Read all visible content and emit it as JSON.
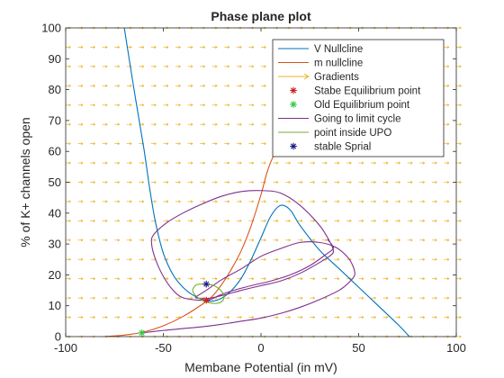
{
  "chart_data": {
    "type": "line",
    "title": "Phase plane plot",
    "xlabel": "Membane Potential (in mV)",
    "ylabel": "% of K+ channels open",
    "xlim": [
      -100,
      100
    ],
    "ylim": [
      0,
      100
    ],
    "xticks": [
      -100,
      -50,
      0,
      50,
      100
    ],
    "yticks": [
      0,
      10,
      20,
      30,
      40,
      50,
      60,
      70,
      80,
      90,
      100
    ],
    "grid": false,
    "legend_position": "top-right",
    "series": [
      {
        "name": "V Nullcline",
        "type": "line",
        "color": "#0072BD",
        "x": [
          -70,
          -65,
          -60,
          -57,
          -54,
          -50,
          -45,
          -40,
          -35,
          -30,
          -25,
          -20,
          -15,
          -10,
          -5,
          0,
          5,
          10,
          15,
          20,
          30,
          40,
          50,
          60,
          70,
          76
        ],
        "y": [
          100,
          80,
          61,
          48,
          37,
          27,
          20,
          16,
          13.5,
          12,
          11.5,
          12.5,
          15,
          19,
          25,
          32,
          39,
          42.5,
          41,
          36,
          28,
          22,
          16,
          10,
          4,
          0
        ]
      },
      {
        "name": "m nullcline",
        "type": "line",
        "color": "#D95319",
        "x": [
          -80,
          -70,
          -60,
          -50,
          -40,
          -30,
          -25,
          -20,
          -15,
          -10,
          -5,
          0,
          3,
          6,
          10
        ],
        "y": [
          0,
          0.5,
          1.5,
          3.5,
          6.5,
          10.5,
          13,
          17,
          22,
          28,
          36,
          46,
          53,
          58,
          62
        ]
      },
      {
        "name": "Gradients",
        "type": "quiver",
        "color": "#EDB120"
      },
      {
        "name": "Stabe Equilibrium point",
        "type": "scatter",
        "color": "#CC1F1F",
        "marker": "*",
        "x": [
          -28
        ],
        "y": [
          11.8
        ]
      },
      {
        "name": "Old Equilibrium point",
        "type": "scatter",
        "color": "#2ECC40",
        "marker": "*",
        "x": [
          -61
        ],
        "y": [
          1.2
        ]
      },
      {
        "name": "Going to limit cycle",
        "type": "line",
        "color": "#7E2F8E",
        "x": [
          -61,
          -50,
          -40,
          -30,
          -20,
          -10,
          0,
          10,
          20,
          30,
          40,
          45,
          48,
          47,
          44,
          38,
          30,
          20,
          10,
          0,
          -10,
          -20,
          -28,
          -33,
          -33,
          -28,
          -20,
          -10,
          0,
          10,
          20,
          30,
          36,
          37,
          35,
          30,
          20,
          10,
          0,
          -10,
          -20,
          -30,
          -40,
          -48,
          -55,
          -56,
          -54,
          -50,
          -45,
          -40,
          -32,
          -26,
          -22,
          -15,
          -5,
          5,
          15,
          25,
          33,
          37,
          36,
          34
        ],
        "y": [
          1.2,
          2,
          2.6,
          3.2,
          4,
          5,
          6,
          7.5,
          9.5,
          12,
          15,
          17.5,
          20,
          23,
          26,
          29,
          30.5,
          30.5,
          28.5,
          26,
          22,
          18.5,
          15,
          13,
          12.5,
          12.3,
          13.3,
          15,
          16.5,
          18,
          20.5,
          24,
          26.5,
          28,
          31,
          36,
          42.5,
          46.5,
          47.3,
          47,
          45.5,
          43,
          40,
          37,
          33,
          30,
          25,
          19.5,
          15,
          12.6,
          11.8,
          12,
          13.2,
          14.8,
          16.5,
          18,
          20,
          23,
          26.5,
          28.5,
          30,
          31.5
        ]
      },
      {
        "name": "point inside UPO",
        "type": "line",
        "color": "#77AC30",
        "x": [
          -28,
          -24,
          -20,
          -19,
          -21,
          -25,
          -29,
          -33,
          -35,
          -33,
          -29,
          -28
        ],
        "y": [
          17,
          16.5,
          14.5,
          12.5,
          11,
          10.8,
          11.5,
          13,
          15,
          16.8,
          17,
          17
        ]
      },
      {
        "name": "stable Sprial",
        "type": "scatter",
        "color": "#1A1A8C",
        "marker": "*",
        "x": [
          -28
        ],
        "y": [
          17
        ]
      }
    ]
  }
}
